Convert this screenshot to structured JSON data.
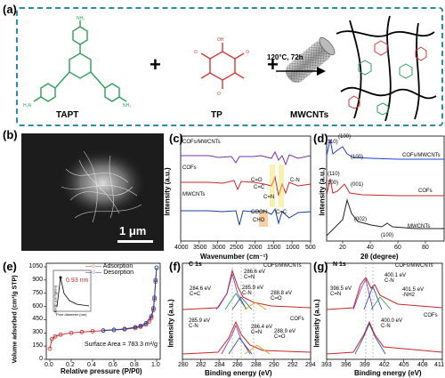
{
  "panel_a": {
    "label": "(a)",
    "reagents": [
      "TAPT",
      "TP",
      "MWCNTs"
    ],
    "plus": "+",
    "condition": "120°C, 72h"
  },
  "panel_b": {
    "label": "(b)",
    "scalebar": "1 μm"
  },
  "chart_data": [
    {
      "panel": "(c)",
      "type": "line",
      "xlabel": "Wavenumber (cm⁻¹)",
      "ylabel": "Intensity (a.u.)",
      "xlim": [
        4000,
        500
      ],
      "xticks": [
        "4000",
        "3500",
        "3000",
        "2500",
        "2000",
        "1500",
        "1000",
        "500"
      ],
      "series": [
        {
          "name": "COFs/MWCNTs",
          "color": "#7b2fb0"
        },
        {
          "name": "COFs",
          "color": "#c62828"
        },
        {
          "name": "MWCNTs",
          "color": "#1a3fa0"
        }
      ],
      "annotations": [
        "C=C",
        "C-N",
        "C=N",
        "C=O",
        "C=C",
        "COOH",
        "CHO"
      ]
    },
    {
      "panel": "(d)",
      "type": "line",
      "xlabel": "2θ (degree)",
      "ylabel": "Intensity (a.u.)",
      "xlim": [
        5,
        90
      ],
      "xticks": [
        "20",
        "40",
        "60",
        "80"
      ],
      "series": [
        {
          "name": "COFs/MWCNTs",
          "color": "#1f3fd6"
        },
        {
          "name": "COFs",
          "color": "#c62828"
        },
        {
          "name": "MWCNTs",
          "color": "#222222"
        }
      ],
      "peak_labels": [
        "(110)",
        "(100)",
        "(100)",
        "(110)",
        "(100)",
        "(001)",
        "(002)",
        "(100)"
      ]
    },
    {
      "panel": "(e)",
      "type": "line",
      "xlabel": "Relative pressure (P/P0)",
      "ylabel": "Volume adsorbed (cm³/g STP)",
      "xlim": [
        0.0,
        1.0
      ],
      "ylim": [
        0,
        1050
      ],
      "xticks": [
        "0.0",
        "0.2",
        "0.4",
        "0.6",
        "0.8",
        "1.0"
      ],
      "yticks": [
        "0",
        "150",
        "300",
        "450",
        "600",
        "750",
        "900",
        "1050"
      ],
      "series": [
        {
          "name": "Adsorption",
          "color": "#c62828",
          "x": [
            0.0,
            0.02,
            0.05,
            0.1,
            0.2,
            0.3,
            0.4,
            0.5,
            0.6,
            0.7,
            0.8,
            0.85,
            0.9,
            0.93,
            0.95,
            0.97,
            0.98,
            0.99,
            1.0
          ],
          "y": [
            120,
            230,
            260,
            280,
            300,
            310,
            318,
            325,
            332,
            340,
            355,
            370,
            395,
            430,
            470,
            560,
            680,
            880,
            1040
          ]
        },
        {
          "name": "Desorption",
          "color": "#1a3fa0",
          "x": [
            1.0,
            0.99,
            0.98,
            0.97,
            0.95,
            0.9,
            0.85,
            0.8,
            0.7,
            0.6,
            0.5
          ],
          "y": [
            1040,
            900,
            700,
            580,
            490,
            410,
            380,
            365,
            345,
            335,
            328
          ]
        }
      ],
      "inset": {
        "xlabel": "Pore diameter (nm)",
        "ylabel": "dV/dD (cm³/g/nm)",
        "peak": "0.93 nm"
      },
      "annotation": "Surface Area = 783.3 m²/g"
    },
    {
      "panel": "(f)",
      "type": "line",
      "title": "C 1s",
      "xlabel": "Binding energy (eV)",
      "ylabel": "Intensity (a.u.)",
      "xlim": [
        280,
        294
      ],
      "xticks": [
        "280",
        "282",
        "284",
        "286",
        "288",
        "290",
        "292",
        "294"
      ],
      "labels_top": {
        "sample": "COFs/MWCNTs",
        "peaks": [
          "284.6 eV\nC=C",
          "286.6 eV\nC=N",
          "285.9 eV\nC-N",
          "288.8 eV\nC=O"
        ]
      },
      "labels_bottom": {
        "sample": "COFs",
        "peaks": [
          "285.9 eV\nC-N",
          "286.4 eV\nC=N",
          "288.9 eV\nC=O"
        ]
      }
    },
    {
      "panel": "(g)",
      "type": "line",
      "title": "N 1s",
      "xlabel": "Binding energy (eV)",
      "ylabel": "Intensity (a.u.)",
      "xlim": [
        393,
        411
      ],
      "xticks": [
        "393",
        "396",
        "399",
        "402",
        "405",
        "408",
        "411"
      ],
      "labels_top": {
        "sample": "COFs/MWCNTs",
        "peaks": [
          "398.5 eV\nC=N",
          "400.1 eV\nC-N",
          "401.5 eV\n-NH2"
        ]
      },
      "labels_bottom": {
        "sample": "COFs",
        "peaks": [
          "400.0 eV\nC-N"
        ]
      }
    }
  ]
}
